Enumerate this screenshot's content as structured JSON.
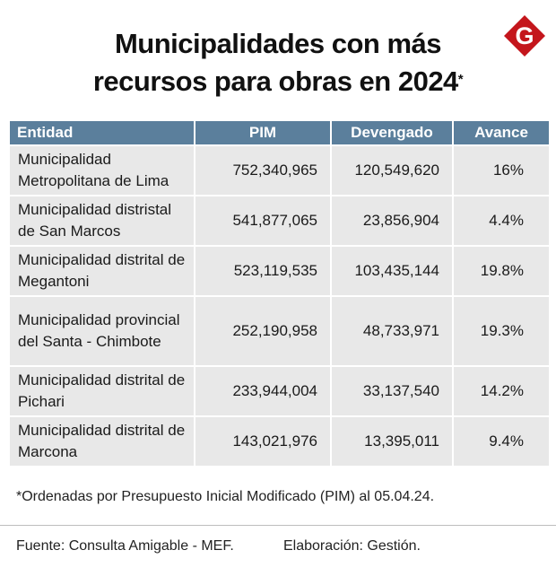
{
  "title": {
    "line1": "Municipalidades con más",
    "line2": "recursos para obras en 2024",
    "marker": "*"
  },
  "logo": {
    "letter": "G",
    "color": "#c4161c"
  },
  "table": {
    "headers": [
      "Entidad",
      "PIM",
      "Devengado",
      "Avance"
    ],
    "rows": [
      {
        "entidad": "Municipalidad Metropolitana de Lima",
        "pim": "752,340,965",
        "devengado": "120,549,620",
        "avance": "16%"
      },
      {
        "entidad": "Municipalidad distristal de San Marcos",
        "pim": "541,877,065",
        "devengado": "23,856,904",
        "avance": "4.4%"
      },
      {
        "entidad": "Municipalidad distrital de Megantoni",
        "pim": "523,119,535",
        "devengado": "103,435,144",
        "avance": "19.8%"
      },
      {
        "entidad": "Municipalidad provincial del Santa - Chimbote",
        "pim": "252,190,958",
        "devengado": "48,733,971",
        "avance": "19.3%"
      },
      {
        "entidad": "Municipalidad distrital de Pichari",
        "pim": "233,944,004",
        "devengado": "33,137,540",
        "avance": "14.2%"
      },
      {
        "entidad": "Municipalidad distrital de Marcona",
        "pim": "143,021,976",
        "devengado": "13,395,011",
        "avance": "9.4%"
      }
    ]
  },
  "footnote": "*Ordenadas por Presupuesto Inicial Modificado (PIM) al 05.04.24.",
  "source": "Fuente: Consulta Amigable - MEF.",
  "credit": "Elaboración: Gestión.",
  "colors": {
    "header_bg": "#5b7f9c",
    "cell_bg": "#e8e8e8"
  }
}
